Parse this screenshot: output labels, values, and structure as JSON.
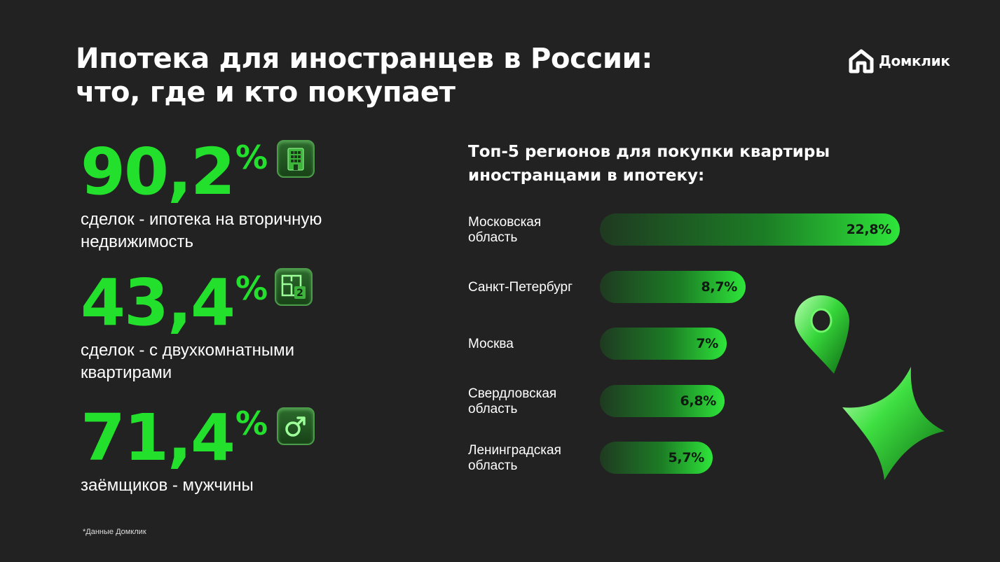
{
  "header": {
    "title_line1": "Ипотека для иностранцев в России:",
    "title_line2": "что, где и кто покупает",
    "brand": "Домклик"
  },
  "stats": [
    {
      "value": "90,2",
      "unit": "%",
      "desc_line1": "сделок - ипотека на вторичную",
      "desc_line2": "недвижимость",
      "icon": "building-icon"
    },
    {
      "value": "43,4",
      "unit": "%",
      "desc_line1": "сделок - с двухкомнатными",
      "desc_line2": "квартирами",
      "icon": "floorplan-two-rooms-icon"
    },
    {
      "value": "71,4",
      "unit": "%",
      "desc_line1": "заёмщиков - мужчины",
      "desc_line2": "",
      "icon": "male-symbol-icon"
    }
  ],
  "colors": {
    "accent": "#23e02d",
    "background": "#222222",
    "bar_dark": "#1f3a21",
    "bar_bright": "#2ee53a"
  },
  "chart_data": {
    "type": "bar",
    "orientation": "horizontal",
    "title_line1": "Топ-5 регионов для покупки квартиры",
    "title_line2": "иностранцами в ипотеку:",
    "categories": [
      {
        "line1": "Московская",
        "line2": "область"
      },
      {
        "line1": "Санкт-Петербург",
        "line2": ""
      },
      {
        "line1": "Москва",
        "line2": ""
      },
      {
        "line1": "Свердловская",
        "line2": "область"
      },
      {
        "line1": "Ленинградская",
        "line2": "область"
      }
    ],
    "values": [
      22.8,
      8.7,
      7,
      6.8,
      5.7
    ],
    "value_labels": [
      "22,8%",
      "8,7%",
      "7%",
      "6,8%",
      "5,7%"
    ],
    "unit": "%",
    "grid": false,
    "legend": "none"
  },
  "footnote": "*Данные Домклик",
  "decorations": [
    "map-pin-icon",
    "sparkle-star-icon"
  ]
}
